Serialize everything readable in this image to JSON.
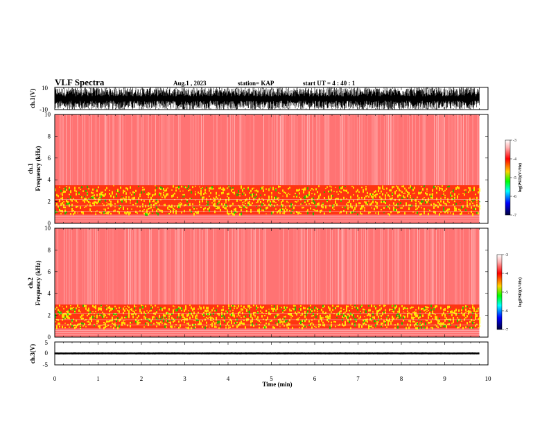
{
  "header": {
    "title": "VLF Spectra",
    "date": "Aug.1 , 2023",
    "station": "station= KAP",
    "start_time": "start UT = 4 : 40 : 1"
  },
  "chart_data": [
    {
      "type": "line",
      "panel": "ch1-waveform",
      "ylabel": "ch.1(V)",
      "ylim": [
        -10,
        10
      ],
      "yticks": [
        "10",
        "-10"
      ],
      "xlim": [
        0,
        10
      ],
      "x_extent_min": 9.8,
      "description_of_data": "dense noise-like waveform filling roughly -10 to 10 V",
      "series": [
        {
          "values_range": [
            -10,
            10
          ]
        }
      ]
    },
    {
      "type": "heatmap",
      "panel": "ch1-spectrogram",
      "ylabel": "ch.1 Frequency (kHz)",
      "ylabel_lines": [
        "ch.1",
        "Frequency (kHz)"
      ],
      "ylim": [
        0,
        10
      ],
      "yticks": [
        "0",
        "2",
        "4",
        "6",
        "8",
        "10"
      ],
      "xlim": [
        0,
        10
      ],
      "x_extent_min": 9.8,
      "bands_khz": [
        {
          "from": 0,
          "to": 0.8,
          "level": -3.5
        },
        {
          "from": 0.8,
          "to": 3.5,
          "level": -4.6
        },
        {
          "from": 3.5,
          "to": 10,
          "level": -3.3
        }
      ],
      "colorbar": {
        "label": "log(PSD)(V²/Hz)",
        "range": [
          -7,
          -3
        ],
        "ticks": [
          "-3",
          "-4",
          "-5",
          "-6",
          "-7"
        ]
      }
    },
    {
      "type": "heatmap",
      "panel": "ch2-spectrogram",
      "ylabel": "ch.2 Frequency (kHz)",
      "ylabel_lines": [
        "ch.2",
        "Frequency (kHz)"
      ],
      "ylim": [
        0,
        10
      ],
      "yticks": [
        "0",
        "2",
        "4",
        "6",
        "8",
        "10"
      ],
      "xlim": [
        0,
        10
      ],
      "x_extent_min": 9.8,
      "bands_khz": [
        {
          "from": 0,
          "to": 0.8,
          "level": -3.5
        },
        {
          "from": 0.8,
          "to": 3.0,
          "level": -4.6
        },
        {
          "from": 3.0,
          "to": 10,
          "level": -3.3
        }
      ],
      "colorbar": {
        "label": "log(PSD)(V²/Hz)",
        "range": [
          -7,
          -3
        ],
        "ticks": [
          "-3",
          "-4",
          "-5",
          "-6",
          "-7"
        ]
      }
    },
    {
      "type": "line",
      "panel": "ch3-waveform",
      "ylabel": "ch.3(V)",
      "ylim": [
        -5,
        5
      ],
      "yticks": [
        "5",
        "0",
        "-5"
      ],
      "xlim": [
        0,
        10
      ],
      "x_extent_min": 9.8,
      "series": [
        {
          "values_range": [
            -0.4,
            0.4
          ]
        }
      ],
      "xlabel": "Time (min)",
      "xticks": [
        "0",
        "1",
        "2",
        "3",
        "4",
        "5",
        "6",
        "7",
        "8",
        "9",
        "10"
      ]
    }
  ],
  "colors": {
    "waveform": "#000000",
    "spectrogram_bg": "#ff0000",
    "spectrogram_mid": "#ffff00",
    "spectrogram_green": "#00cc00",
    "colorbar_stops": [
      "#ffffff",
      "#ff0000",
      "#ffff00",
      "#00ff00",
      "#00ffff",
      "#0000ff",
      "#000033"
    ]
  }
}
